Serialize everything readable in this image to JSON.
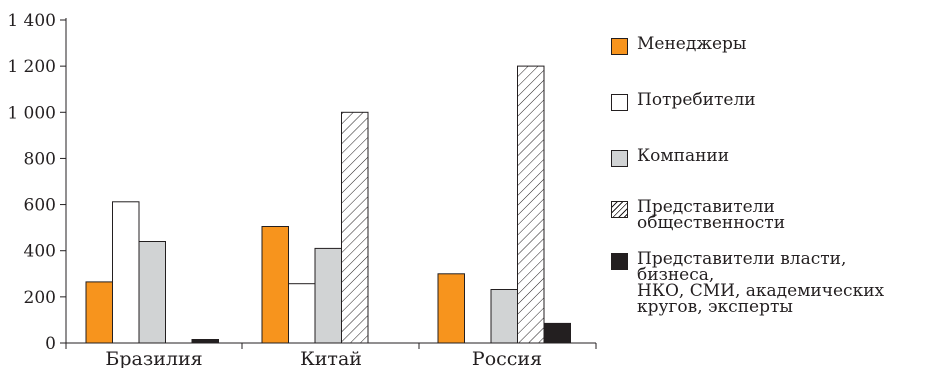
{
  "chart_data": {
    "type": "bar",
    "categories": [
      "Бразилия",
      "Китай",
      "Россия"
    ],
    "yticks": [
      "0",
      "200",
      "400",
      "600",
      "800",
      "1 000",
      "1 200",
      "1 400"
    ],
    "ylim": [
      0,
      1400
    ],
    "grid": false,
    "legend_position": "right",
    "series": [
      {
        "name": "Менеджеры",
        "values": [
          265,
          505,
          300
        ],
        "color": "#f7941d",
        "pattern": "solid"
      },
      {
        "name": "Потребители",
        "values": [
          612,
          257,
          0
        ],
        "color": "#ffffff",
        "pattern": "solid"
      },
      {
        "name": "Компании",
        "values": [
          440,
          410,
          232
        ],
        "color": "#d1d3d4",
        "pattern": "solid"
      },
      {
        "name": "Представители общественности",
        "values": [
          0,
          1000,
          1200
        ],
        "color": "#ffffff",
        "pattern": "hatch"
      },
      {
        "name": "Представители власти, бизнеса, НКО, СМИ, академических кругов, эксперты",
        "values": [
          15,
          0,
          85
        ],
        "color": "#231f20",
        "pattern": "solid"
      }
    ]
  },
  "legend": {
    "items": [
      {
        "label": "Менеджеры",
        "icon": "orange-swatch"
      },
      {
        "label": "Потребители",
        "icon": "white-swatch"
      },
      {
        "label": "Компании",
        "icon": "gray-swatch"
      },
      {
        "label": "Представители общественности",
        "icon": "hatched-swatch"
      },
      {
        "label": "Представители власти, бизнеса,\nНКО, СМИ, академических\nкругов, эксперты",
        "icon": "black-swatch"
      }
    ]
  }
}
